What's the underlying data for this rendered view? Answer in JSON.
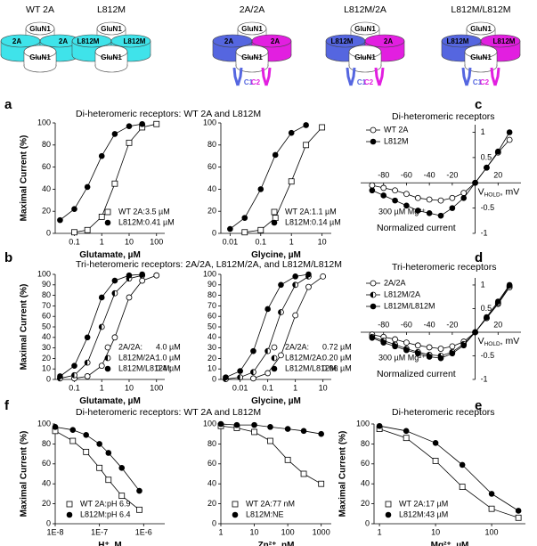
{
  "schematics": [
    {
      "title": "WT 2A",
      "top": "GluN1",
      "left": "2A",
      "right": "2A",
      "bottom": "GluN1",
      "colors": [
        "#3fe3ea",
        "#3fe3ea"
      ]
    },
    {
      "title": "L812M",
      "top": "GluN1",
      "left": "L812M",
      "right": "L812M",
      "bottom": "GluN1",
      "colors": [
        "#3fe3ea",
        "#3fe3ea"
      ]
    },
    {
      "title": "2A/2A",
      "top": "GluN1",
      "left": "2A",
      "right": "2A",
      "bottom": "GluN1",
      "colors": [
        "#5566e0",
        "#e21fe0"
      ],
      "tails": [
        "C1",
        "C2"
      ]
    },
    {
      "title": "L812M/2A",
      "top": "GluN1",
      "left": "L812M",
      "right": "2A",
      "bottom": "GluN1",
      "colors": [
        "#5566e0",
        "#e21fe0"
      ],
      "tails": [
        "C1",
        "C2"
      ]
    },
    {
      "title": "L812M/L812M",
      "top": "GluN1",
      "left": "L812M",
      "right": "L812M",
      "bottom": "GluN1",
      "colors": [
        "#5566e0",
        "#e21fe0"
      ],
      "tails": [
        "C1",
        "C2"
      ]
    }
  ],
  "chart_data": [
    {
      "type": "line",
      "panel": "a",
      "title": "Di-heteromeric receptors: WT 2A and L812M",
      "xscale": "log",
      "xlim": [
        0.02,
        200
      ],
      "xticks": [
        0.1,
        1,
        10,
        100
      ],
      "ylim": [
        0,
        100
      ],
      "yticks": [
        0,
        20,
        40,
        60,
        80,
        100
      ],
      "xlabel": [
        "Glutamate, µM"
      ],
      "ylabel": "Maximal Current (%)",
      "legend": "lower-right",
      "series": [
        {
          "name": "WT 2A:",
          "ec50": "3.5 µM",
          "marker": "open-square",
          "color": "#000000",
          "x": [
            0.1,
            0.3,
            1,
            3,
            10,
            30,
            100
          ],
          "values": [
            1,
            3,
            15,
            45,
            82,
            96,
            99
          ]
        },
        {
          "name": "L812M:",
          "ec50": "0.41 µM",
          "marker": "filled-circle",
          "color": "#000000",
          "x": [
            0.03,
            0.1,
            0.3,
            1,
            3,
            10,
            30
          ],
          "values": [
            12,
            22,
            42,
            70,
            90,
            97,
            99
          ]
        }
      ]
    },
    {
      "type": "line",
      "xscale": "log",
      "xlim": [
        0.005,
        20
      ],
      "xticks": [
        0.01,
        0.1,
        1,
        10
      ],
      "ylim": [
        0,
        100
      ],
      "yticks": [
        0,
        20,
        40,
        60,
        80,
        100
      ],
      "xlabel": [
        "Glycine, µM"
      ],
      "legend": "lower-right",
      "series": [
        {
          "name": "WT 2A:",
          "ec50": "1.1 µM",
          "marker": "open-square",
          "color": "#000000",
          "x": [
            0.03,
            0.1,
            0.3,
            1,
            3,
            10
          ],
          "values": [
            1,
            3,
            14,
            47,
            80,
            96
          ]
        },
        {
          "name": "L812M:",
          "ec50": "0.14 µM",
          "marker": "filled-circle",
          "color": "#000000",
          "x": [
            0.01,
            0.03,
            0.1,
            0.3,
            1,
            3
          ],
          "values": [
            4,
            14,
            40,
            71,
            91,
            98
          ]
        }
      ]
    },
    {
      "type": "line",
      "panel": "c",
      "title": "Di-heteromeric receptors",
      "axes": "origin",
      "xlim": [
        -100,
        40
      ],
      "xticks": [
        -80,
        -60,
        -40,
        -20,
        20
      ],
      "ylim": [
        -1,
        1.15
      ],
      "yticks": [
        -1,
        -0.5,
        0.5,
        1
      ],
      "xlabel": [
        "V",
        "HOLD",
        ", mV"
      ],
      "ylabel": "Normalized current",
      "annotation": "300 µM Mg²⁺",
      "legend": "upper-left",
      "series": [
        {
          "name": "WT 2A",
          "marker": "open-circle",
          "color": "#000000",
          "x": [
            -90,
            -80,
            -70,
            -60,
            -50,
            -40,
            -30,
            -20,
            -10,
            0,
            10,
            20,
            30
          ],
          "values": [
            -0.05,
            -0.1,
            -0.15,
            -0.22,
            -0.3,
            -0.33,
            -0.35,
            -0.3,
            -0.2,
            0,
            0.3,
            0.6,
            0.85
          ]
        },
        {
          "name": "L812M",
          "marker": "filled-circle",
          "color": "#000000",
          "x": [
            -90,
            -80,
            -70,
            -60,
            -50,
            -40,
            -30,
            -20,
            -10,
            0,
            10,
            20,
            30
          ],
          "values": [
            -0.15,
            -0.25,
            -0.35,
            -0.45,
            -0.55,
            -0.6,
            -0.65,
            -0.5,
            -0.3,
            0,
            0.3,
            0.62,
            1
          ]
        }
      ]
    },
    {
      "type": "line",
      "panel": "b",
      "title": "Tri-heteromeric receptors: 2A/2A, L812M/2A, and L812M/L812M",
      "xscale": "log",
      "xlim": [
        0.02,
        200
      ],
      "xticks": [
        0.1,
        1,
        10,
        100
      ],
      "ylim": [
        0,
        100
      ],
      "yticks": [
        0,
        10,
        20,
        30,
        40,
        50,
        60,
        70,
        80,
        90,
        100
      ],
      "xlabel": [
        "Glutamate, µM"
      ],
      "ylabel": "Maximal Current (%)",
      "legend": "lower-right",
      "series": [
        {
          "name": "2A/2A:",
          "ec50": "4.0 µM",
          "marker": "open-circle",
          "color": "#000000",
          "x": [
            0.1,
            0.3,
            1,
            3,
            10,
            30,
            100
          ],
          "values": [
            1,
            3,
            13,
            40,
            78,
            94,
            99
          ]
        },
        {
          "name": "L812M/2A:",
          "ec50": "1.0 µM",
          "marker": "half-circle",
          "color": "#000000",
          "x": [
            0.03,
            0.1,
            0.3,
            1,
            3,
            10,
            30
          ],
          "values": [
            1,
            4,
            16,
            50,
            82,
            96,
            99
          ]
        },
        {
          "name": "L812M/L812M:",
          "ec50": "0.4 µM",
          "marker": "filled-circle",
          "color": "#000000",
          "x": [
            0.03,
            0.1,
            0.3,
            1,
            3,
            10,
            30
          ],
          "values": [
            3,
            13,
            40,
            78,
            94,
            99,
            100
          ]
        }
      ]
    },
    {
      "type": "line",
      "xscale": "log",
      "xlim": [
        0.002,
        20
      ],
      "xticks": [
        0.01,
        0.1,
        1,
        10
      ],
      "ylim": [
        0,
        100
      ],
      "yticks": [
        0,
        10,
        20,
        30,
        40,
        50,
        60,
        70,
        80,
        90,
        100
      ],
      "xlabel": [
        "Glycine, µM"
      ],
      "legend": "lower-right",
      "series": [
        {
          "name": "2A/2A:",
          "ec50": "0.72 µM",
          "marker": "open-circle",
          "color": "#000000",
          "x": [
            0.03,
            0.1,
            0.3,
            1,
            3,
            10
          ],
          "values": [
            1,
            6,
            23,
            61,
            88,
            98
          ]
        },
        {
          "name": "L812M/2A:",
          "ec50": "0.20 µM",
          "marker": "half-circle",
          "color": "#000000",
          "x": [
            0.003,
            0.01,
            0.03,
            0.1,
            0.3,
            1,
            3
          ],
          "values": [
            0.3,
            2,
            7,
            27,
            64,
            90,
            98
          ]
        },
        {
          "name": "L812M/L812M:",
          "ec50": "0.06 µM",
          "marker": "filled-circle",
          "color": "#000000",
          "x": [
            0.003,
            0.01,
            0.03,
            0.1,
            0.3,
            1,
            3
          ],
          "values": [
            2,
            8,
            27,
            67,
            90,
            98,
            100
          ]
        }
      ]
    },
    {
      "type": "line",
      "panel": "d",
      "title": "Tri-heteromeric receptors",
      "axes": "origin",
      "xlim": [
        -100,
        40
      ],
      "xticks": [
        -80,
        -60,
        -40,
        -20,
        20
      ],
      "ylim": [
        -1,
        1.15
      ],
      "yticks": [
        -1,
        -0.5,
        0.5,
        1
      ],
      "xlabel": [
        "V",
        "HOLD",
        ", mV"
      ],
      "ylabel": "Normalized current",
      "annotation": "300 µM Mg²⁺",
      "legend": "upper-left",
      "series": [
        {
          "name": "2A/2A",
          "marker": "open-circle",
          "color": "#000000",
          "x": [
            -90,
            -80,
            -70,
            -60,
            -50,
            -40,
            -30,
            -20,
            -10,
            0,
            10,
            20,
            30
          ],
          "values": [
            -0.05,
            -0.1,
            -0.15,
            -0.22,
            -0.28,
            -0.32,
            -0.35,
            -0.3,
            -0.2,
            0,
            0.3,
            0.6,
            0.95
          ]
        },
        {
          "name": "L812M/2A",
          "marker": "half-circle",
          "color": "#000000",
          "x": [
            -90,
            -80,
            -70,
            -60,
            -50,
            -40,
            -30,
            -20,
            -10,
            0,
            10,
            20,
            30
          ],
          "values": [
            -0.1,
            -0.18,
            -0.26,
            -0.35,
            -0.42,
            -0.48,
            -0.5,
            -0.42,
            -0.25,
            0,
            0.3,
            0.62,
            0.98
          ]
        },
        {
          "name": "L812M/L812M",
          "marker": "filled-circle",
          "color": "#000000",
          "x": [
            -90,
            -80,
            -70,
            -60,
            -50,
            -40,
            -30,
            -20,
            -10,
            0,
            10,
            20,
            30
          ],
          "values": [
            -0.12,
            -0.22,
            -0.3,
            -0.38,
            -0.45,
            -0.52,
            -0.55,
            -0.45,
            -0.28,
            0,
            0.32,
            0.65,
            1
          ]
        }
      ]
    },
    {
      "type": "line",
      "panel": "f",
      "title": "Di-heteromeric receptors: WT 2A and L812M",
      "xscale": "log",
      "xlim": [
        1e-08,
        3e-06
      ],
      "xticks": [
        {
          "value": 1e-08,
          "label": "1E-8"
        },
        {
          "value": 1e-07,
          "label": "1E-7"
        },
        {
          "value": 1e-06,
          "label": "1E-6"
        }
      ],
      "ylim": [
        0,
        100
      ],
      "yticks": [
        0,
        20,
        40,
        60,
        80,
        100
      ],
      "xlabel": [
        "H⁺, M"
      ],
      "ylabel": "Maximal Current (%)",
      "legend": "lower-left",
      "series": [
        {
          "name": "WT 2A:",
          "ec50": "pH 6.9",
          "marker": "open-square",
          "color": "#000000",
          "x": [
            1e-08,
            2.5e-08,
            5e-08,
            1e-07,
            1.6e-07,
            3.2e-07,
            8e-07
          ],
          "values": [
            93,
            83,
            72,
            56,
            44,
            28,
            14
          ]
        },
        {
          "name": "L812M:",
          "ec50": "pH 6.4",
          "marker": "filled-circle",
          "color": "#000000",
          "x": [
            1e-08,
            2.5e-08,
            5e-08,
            1e-07,
            1.6e-07,
            3.2e-07,
            8e-07
          ],
          "values": [
            97,
            94,
            89,
            80,
            71,
            56,
            33
          ]
        }
      ]
    },
    {
      "type": "line",
      "xscale": "log",
      "xlim": [
        1,
        2000
      ],
      "xticks": [
        1,
        10,
        100,
        1000
      ],
      "ylim": [
        0,
        100
      ],
      "yticks": [
        0,
        20,
        40,
        60,
        80,
        100
      ],
      "xlabel": [
        "Zn²⁺, nM"
      ],
      "legend": "lower-left",
      "series": [
        {
          "name": "WT 2A:",
          "ec50": "77 nM",
          "marker": "open-square",
          "color": "#000000",
          "x": [
            1,
            3,
            10,
            30,
            100,
            300,
            1000
          ],
          "values": [
            98,
            96,
            92,
            83,
            64,
            50,
            40
          ]
        },
        {
          "name": "L812M:",
          "ec50": "NE",
          "marker": "filled-circle",
          "color": "#000000",
          "x": [
            1,
            3,
            10,
            30,
            100,
            300,
            1000
          ],
          "values": [
            100,
            99,
            99,
            97,
            95,
            93,
            90
          ]
        }
      ]
    },
    {
      "type": "line",
      "panel": "e",
      "title": "Di-heteromeric receptors",
      "xscale": "log",
      "xlim": [
        0.8,
        400
      ],
      "xticks": [
        1,
        10,
        100
      ],
      "ylim": [
        0,
        100
      ],
      "yticks": [
        0,
        20,
        40,
        60,
        80,
        100
      ],
      "xlabel": [
        "Mg²⁺, µM"
      ],
      "ylabel": "Maximal Current (%)",
      "legend": "lower-left",
      "series": [
        {
          "name": "WT 2A:",
          "ec50": "17 µM",
          "marker": "open-square",
          "color": "#000000",
          "x": [
            1,
            3,
            10,
            30,
            100,
            300
          ],
          "values": [
            95,
            86,
            63,
            37,
            15,
            6
          ]
        },
        {
          "name": "L812M:",
          "ec50": "43 µM",
          "marker": "filled-circle",
          "color": "#000000",
          "x": [
            1,
            3,
            10,
            30,
            100,
            300
          ],
          "values": [
            98,
            93,
            81,
            59,
            30,
            13
          ]
        }
      ]
    }
  ]
}
